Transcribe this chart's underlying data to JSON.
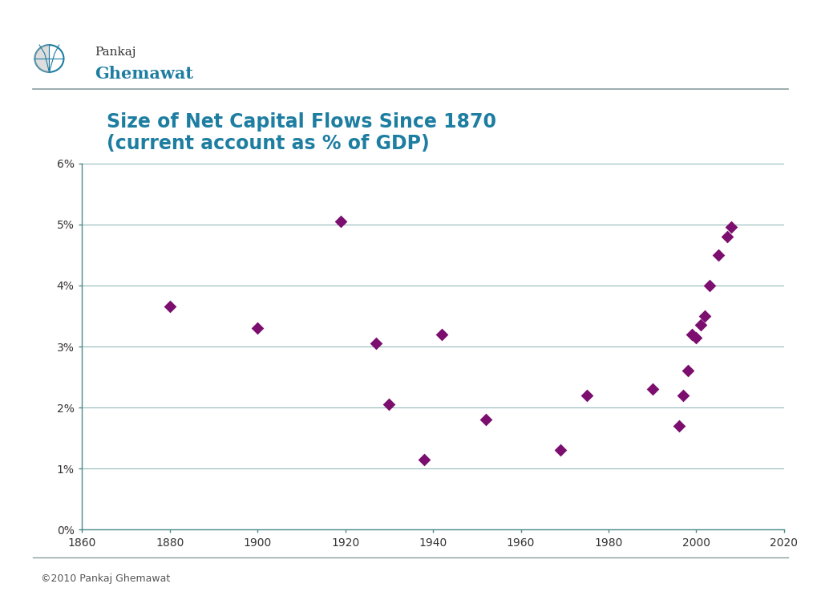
{
  "title_line1": "Size of Net Capital Flows Since 1870",
  "title_line2": "(current account as % of GDP)",
  "title_color": "#1E7EA1",
  "title_fontsize": 17,
  "background_color": "#ffffff",
  "marker_color": "#7B0E6E",
  "marker_size": 8,
  "xlim": [
    1860,
    2020
  ],
  "ylim": [
    0,
    6
  ],
  "xticks": [
    1860,
    1880,
    1900,
    1920,
    1940,
    1960,
    1980,
    2000,
    2020
  ],
  "ytick_labels": [
    "0%",
    "1%",
    "2%",
    "3%",
    "4%",
    "5%",
    "6%"
  ],
  "ytick_values": [
    0,
    1,
    2,
    3,
    4,
    5,
    6
  ],
  "grid_color": "#4D8A8A",
  "axis_color": "#4D8A8A",
  "footer_text": "©2010 Pankaj Ghemawat",
  "footer_fontsize": 9,
  "separator_color": "#8A9EA0",
  "data_points": [
    [
      1880,
      3.65
    ],
    [
      1900,
      3.3
    ],
    [
      1919,
      5.05
    ],
    [
      1927,
      3.05
    ],
    [
      1930,
      2.05
    ],
    [
      1938,
      1.15
    ],
    [
      1942,
      3.2
    ],
    [
      1952,
      1.8
    ],
    [
      1969,
      1.3
    ],
    [
      1975,
      2.2
    ],
    [
      1990,
      2.3
    ],
    [
      1996,
      1.7
    ],
    [
      1997,
      2.2
    ],
    [
      1998,
      2.6
    ],
    [
      1999,
      3.2
    ],
    [
      2000,
      3.15
    ],
    [
      2001,
      3.35
    ],
    [
      2002,
      3.5
    ],
    [
      2003,
      4.0
    ],
    [
      2005,
      4.5
    ],
    [
      2007,
      4.8
    ],
    [
      2008,
      4.95
    ]
  ],
  "logo_name_color": "#333333",
  "logo_brand_color": "#1E7EA1",
  "logo_name": "Pankaj",
  "logo_brand": "Ghemawat",
  "logo_name_fontsize": 11,
  "logo_brand_fontsize": 15
}
